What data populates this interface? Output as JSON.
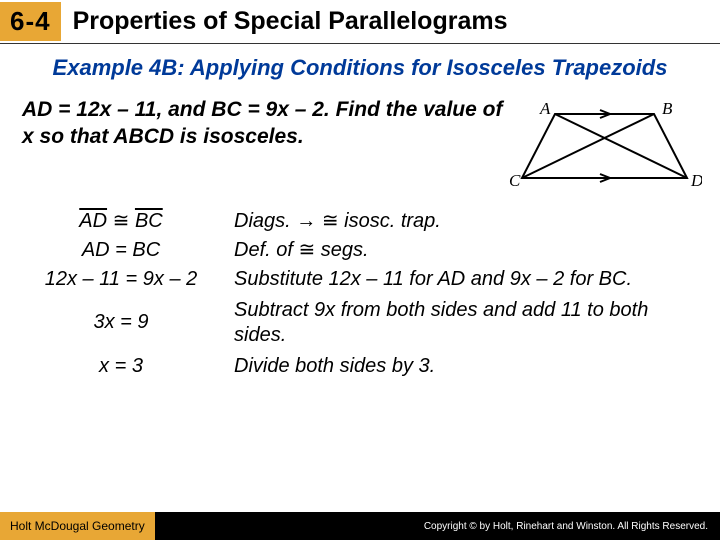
{
  "header": {
    "lesson_tag": "6-4",
    "title": "Properties of Special Parallelograms"
  },
  "example": {
    "heading": "Example 4B: Applying Conditions for Isosceles Trapezoids",
    "problem": "AD = 12x – 11, and BC = 9x – 2. Find the value of x so that ABCD is isosceles."
  },
  "diagram": {
    "labels": {
      "A": "A",
      "B": "B",
      "C": "C",
      "D": "D"
    },
    "stroke": "#000000",
    "font": "italic 17px Georgia"
  },
  "steps": [
    {
      "left_html": "<span class='seg-over'>AD</span> <span class='cong'>≅</span> <span class='seg-over'>BC</span>",
      "right_html": "Diags. → <span class='cong'>≅</span> isosc. trap."
    },
    {
      "left_html": "AD = BC",
      "right_html": "Def. of <span class='cong'>≅</span> segs."
    },
    {
      "left_html": "12x – 11 = 9x – 2",
      "right_html": "Substitute 12x – 11 for AD and 9x – 2 for BC."
    },
    {
      "left_html": "3x = 9",
      "right_html": "Subtract 9x from both sides and add 11 to both sides."
    },
    {
      "left_html": "x = 3",
      "right_html": "Divide both sides by 3."
    }
  ],
  "footer": {
    "publisher": "Holt McDougal Geometry",
    "copyright": "Copyright © by Holt, Rinehart and Winston. All Rights Reserved."
  }
}
